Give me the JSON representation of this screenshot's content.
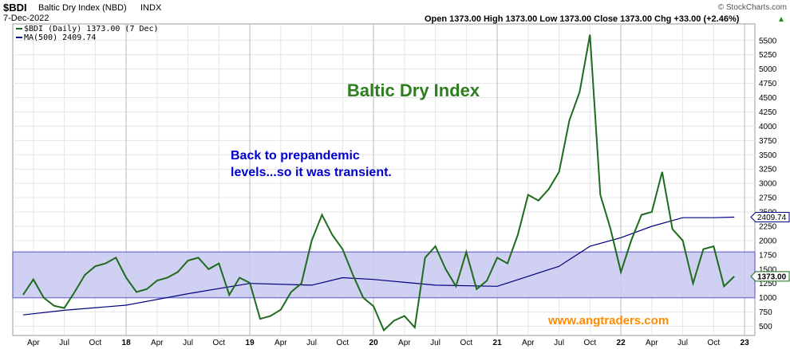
{
  "header": {
    "symbol": "$BDI",
    "name": "Baltic Dry Index (NBD)",
    "exchange": "INDX",
    "date": "7-Dec-2022",
    "copyright": "© StockCharts.com",
    "ohlc": "Open 1373.00  High 1373.00  Low 1373.00  Close 1373.00  Chg +33.00 (+2.46%)",
    "arrow": "▲"
  },
  "legend": {
    "price": "$BDI (Daily) 1373.00 (7 Dec)",
    "ma": "MA(500) 2409.74"
  },
  "annotations": {
    "title": "Baltic Dry Index",
    "note_line1": "Back to prepandemic",
    "note_line2": "levels...so it was transient.",
    "watermark": "www.angtraders.com"
  },
  "tags": {
    "last_price": "1373.00",
    "ma_value": "2409.74"
  },
  "colors": {
    "price": "#1e6b1e",
    "ma": "#000080",
    "band_fill": "#c8c8f0",
    "band_stroke": "#8080d0",
    "title": "#2e7d1e",
    "note": "#0000cc",
    "watermark": "#ff8c00"
  },
  "chart_data": {
    "type": "line",
    "x_ticks": [
      "Apr",
      "Jul",
      "Oct",
      "18",
      "Apr",
      "Jul",
      "Oct",
      "19",
      "Apr",
      "Jul",
      "Oct",
      "20",
      "Apr",
      "Jul",
      "Oct",
      "21",
      "Apr",
      "Jul",
      "Oct",
      "22",
      "Apr",
      "Jul",
      "Oct",
      "23"
    ],
    "x_tick_values": [
      "2017-04",
      "2017-07",
      "2017-10",
      "2018-01",
      "2018-04",
      "2018-07",
      "2018-10",
      "2019-01",
      "2019-04",
      "2019-07",
      "2019-10",
      "2020-01",
      "2020-04",
      "2020-07",
      "2020-10",
      "2021-01",
      "2021-04",
      "2021-07",
      "2021-10",
      "2022-01",
      "2022-04",
      "2022-07",
      "2022-10",
      "2023-01"
    ],
    "y_ticks": [
      500,
      750,
      1000,
      1250,
      1500,
      1750,
      2000,
      2250,
      2500,
      2750,
      3000,
      3250,
      3500,
      3750,
      4000,
      4250,
      4500,
      4750,
      5000,
      5250,
      5500
    ],
    "ylim": [
      340,
      5790
    ],
    "band": [
      1000,
      1800
    ],
    "series": [
      {
        "name": "$BDI (Daily)",
        "x": [
          "2017-03",
          "2017-04",
          "2017-05",
          "2017-06",
          "2017-07",
          "2017-08",
          "2017-09",
          "2017-10",
          "2017-11",
          "2017-12",
          "2018-01",
          "2018-02",
          "2018-03",
          "2018-04",
          "2018-05",
          "2018-06",
          "2018-07",
          "2018-08",
          "2018-09",
          "2018-10",
          "2018-11",
          "2018-12",
          "2019-01",
          "2019-02",
          "2019-03",
          "2019-04",
          "2019-05",
          "2019-06",
          "2019-07",
          "2019-08",
          "2019-09",
          "2019-10",
          "2019-11",
          "2019-12",
          "2020-01",
          "2020-02",
          "2020-03",
          "2020-04",
          "2020-05",
          "2020-06",
          "2020-07",
          "2020-08",
          "2020-09",
          "2020-10",
          "2020-11",
          "2020-12",
          "2021-01",
          "2021-02",
          "2021-03",
          "2021-04",
          "2021-05",
          "2021-06",
          "2021-07",
          "2021-08",
          "2021-09",
          "2021-10",
          "2021-11",
          "2021-12",
          "2022-01",
          "2022-02",
          "2022-03",
          "2022-04",
          "2022-05",
          "2022-06",
          "2022-07",
          "2022-08",
          "2022-09",
          "2022-10",
          "2022-11",
          "2022-12"
        ],
        "values": [
          1050,
          1320,
          1000,
          860,
          820,
          1100,
          1400,
          1550,
          1600,
          1700,
          1350,
          1100,
          1150,
          1300,
          1350,
          1450,
          1650,
          1700,
          1500,
          1600,
          1050,
          1350,
          1260,
          630,
          680,
          790,
          1100,
          1250,
          2000,
          2450,
          2100,
          1850,
          1400,
          1000,
          850,
          430,
          600,
          680,
          480,
          1700,
          1900,
          1500,
          1200,
          1800,
          1150,
          1300,
          1700,
          1600,
          2100,
          2800,
          2700,
          2900,
          3200,
          4100,
          4600,
          5600,
          2800,
          2200,
          1450,
          2000,
          2450,
          2500,
          3200,
          2200,
          2000,
          1250,
          1850,
          1900,
          1200,
          1373
        ]
      },
      {
        "name": "MA(500)",
        "x": [
          "2017-03",
          "2017-07",
          "2018-01",
          "2018-07",
          "2019-01",
          "2019-07",
          "2019-10",
          "2020-01",
          "2020-07",
          "2021-01",
          "2021-07",
          "2021-10",
          "2022-01",
          "2022-04",
          "2022-07",
          "2022-10",
          "2022-12"
        ],
        "values": [
          700,
          780,
          870,
          1070,
          1250,
          1220,
          1350,
          1320,
          1220,
          1200,
          1550,
          1900,
          2050,
          2250,
          2400,
          2400,
          2409.74
        ]
      }
    ]
  }
}
